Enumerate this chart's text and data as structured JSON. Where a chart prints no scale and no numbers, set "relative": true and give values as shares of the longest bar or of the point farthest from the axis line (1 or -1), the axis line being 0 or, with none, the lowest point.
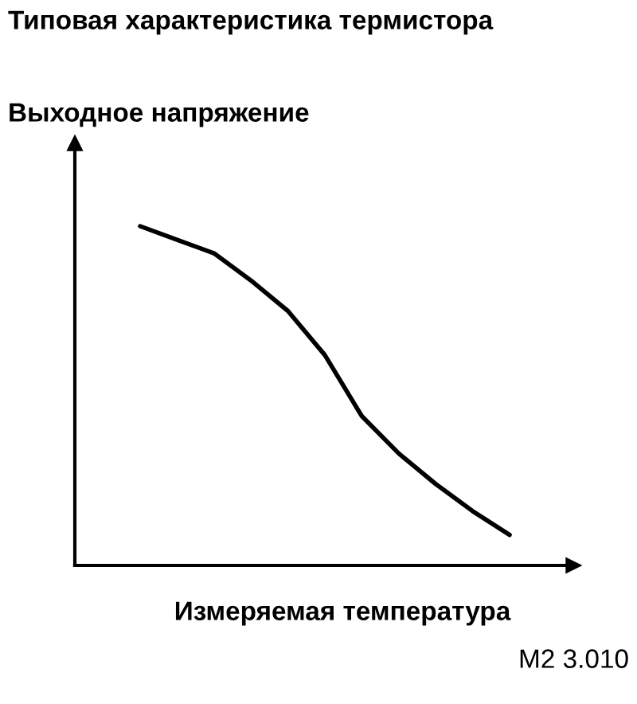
{
  "chart_data": {
    "type": "line",
    "relative": true,
    "title": "Типовая характеристика термистора",
    "ylabel": "Выходное напряжение",
    "xlabel": "Измеряемая температура",
    "annotations": [
      "M2 3.010"
    ],
    "categories": [
      null,
      null,
      null,
      null,
      null,
      null,
      null,
      null,
      null,
      null,
      null
    ],
    "series": [
      {
        "color": "#000000",
        "values": [
          1,
          0.96,
          0.92,
          0.84,
          0.75,
          0.62,
          0.44,
          0.33,
          0.24,
          0.16,
          0.09
        ]
      }
    ],
    "marker": "none",
    "line_style": "solid",
    "grid": false,
    "legend": false
  }
}
